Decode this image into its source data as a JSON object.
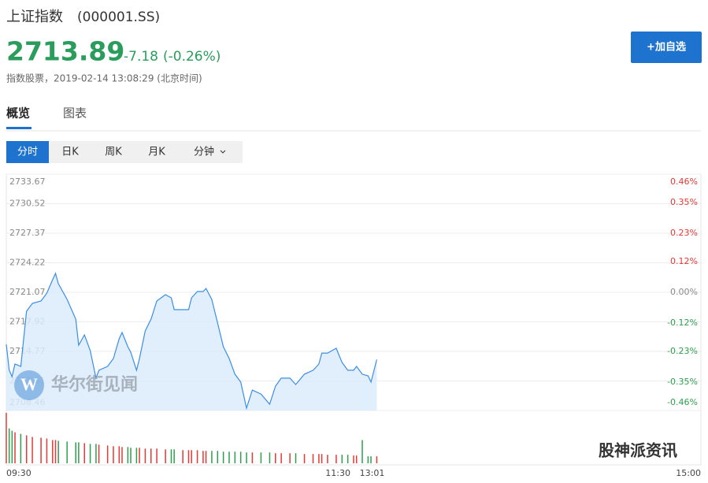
{
  "header": {
    "title": "上证指数",
    "code": "(000001.SS)",
    "price": "2713.89",
    "change": "-7.18",
    "change_pct": "(-0.26%)",
    "info": "指数股票，2019-02-14 13:08:29 (北京时间)",
    "button": "+加自选"
  },
  "tabs": [
    "概览",
    "图表"
  ],
  "periods": [
    "分时",
    "日K",
    "周K",
    "月K",
    "分钟"
  ],
  "watermarks": [
    "华尔街见闻",
    "股神派资讯"
  ],
  "chart_data": {
    "type": "line",
    "color": "#3a8ee6",
    "area_color": "#dcebfa",
    "up_color": "#e53935",
    "down_color": "#2e9e4f",
    "grid": true,
    "x": [
      "09:30",
      "09:31",
      "09:32",
      "09:33",
      "09:35",
      "09:37",
      "09:39",
      "09:42",
      "09:44",
      "09:46",
      "09:47",
      "09:48",
      "09:51",
      "09:54",
      "09:55",
      "09:57",
      "09:59",
      "10:01",
      "10:02",
      "10:05",
      "10:07",
      "10:09",
      "10:10",
      "10:12",
      "10:13",
      "10:15",
      "10:16",
      "10:18",
      "10:20",
      "10:22",
      "10:25",
      "10:27",
      "10:28",
      "10:31",
      "10:33",
      "10:34",
      "10:36",
      "10:38",
      "10:39",
      "10:41",
      "10:43",
      "10:45",
      "10:47",
      "10:49",
      "10:51",
      "10:53",
      "10:55",
      "10:58",
      "11:01",
      "11:03",
      "11:05",
      "11:08",
      "11:10",
      "11:13",
      "11:16",
      "11:18",
      "11:19",
      "11:21",
      "11:24",
      "11:26",
      "11:28",
      "11:30",
      "13:01",
      "13:03",
      "13:05",
      "13:06",
      "13:08"
    ],
    "values": [
      2715.52,
      2712.75,
      2712.07,
      2713.42,
      2713.17,
      2719.05,
      2719.89,
      2720.14,
      2720.98,
      2722.41,
      2723.08,
      2721.99,
      2720.31,
      2718.21,
      2715.43,
      2716.53,
      2714.85,
      2711.91,
      2712.75,
      2713.17,
      2714.01,
      2716.11,
      2716.78,
      2715.27,
      2714.68,
      2712.75,
      2714.01,
      2716.95,
      2718.21,
      2720.14,
      2720.81,
      2720.48,
      2719.22,
      2719.22,
      2719.22,
      2720.48,
      2721.15,
      2721.15,
      2721.48,
      2720.31,
      2717.79,
      2715.27,
      2714.01,
      2712.33,
      2711.49,
      2708.71,
      2710.64,
      2710.22,
      2709.13,
      2711.06,
      2711.91,
      2711.91,
      2711.23,
      2712.33,
      2712.75,
      2713.42,
      2714.59,
      2714.59,
      2715.1,
      2713.59,
      2712.75,
      2712.75,
      2713.17,
      2712.33,
      2712.16,
      2711.49,
      2713.89
    ],
    "volume": [
      65,
      45,
      42,
      40,
      38,
      36,
      34,
      33,
      32,
      30,
      30,
      29,
      28,
      27,
      27,
      26,
      25,
      25,
      24,
      23,
      22,
      22,
      21,
      21,
      20,
      20,
      20,
      19,
      19,
      19,
      18,
      18,
      18,
      17,
      17,
      17,
      17,
      16,
      16,
      16,
      16,
      15,
      15,
      15,
      15,
      14,
      14,
      14,
      14,
      13,
      13,
      13,
      13,
      12,
      12,
      12,
      12,
      11,
      11,
      11,
      11,
      10,
      10,
      30,
      9,
      9,
      9
    ],
    "xlim": [
      "09:30",
      "15:00"
    ],
    "xticks": [
      "09:30",
      "11:30",
      "13:01",
      "15:00"
    ],
    "ylim": [
      2708.46,
      2733.67
    ],
    "yticks": [
      2733.67,
      2730.52,
      2727.37,
      2724.22,
      2721.07,
      2717.92,
      2714.77,
      2711.61,
      2708.46
    ],
    "y2lim": [
      -0.46,
      0.46
    ],
    "y2ticks": [
      {
        "value": 0.46,
        "label": "0.46%"
      },
      {
        "value": 0.35,
        "label": "0.35%"
      },
      {
        "value": 0.23,
        "label": "0.23%"
      },
      {
        "value": 0.12,
        "label": "0.12%"
      },
      {
        "value": 0,
        "label": "0.00%"
      },
      {
        "value": -0.12,
        "label": "-0.12%"
      },
      {
        "value": -0.23,
        "label": "-0.23%"
      },
      {
        "value": -0.35,
        "label": "-0.35%"
      },
      {
        "value": -0.46,
        "label": "-0.46%"
      }
    ]
  }
}
